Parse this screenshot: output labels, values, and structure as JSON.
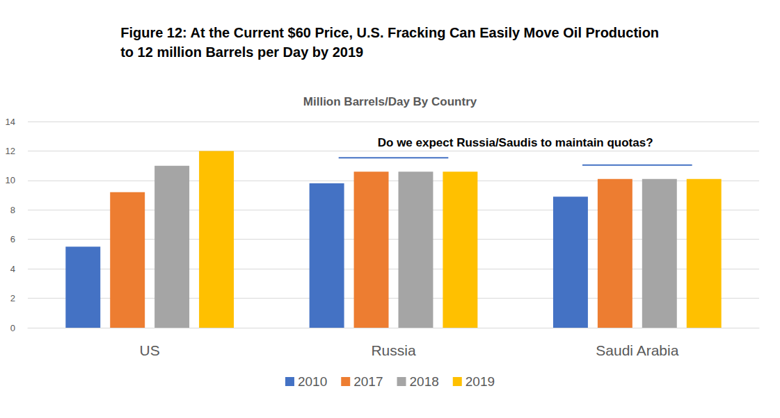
{
  "chart_data": {
    "type": "bar",
    "title": "Figure 12: At the Current $60 Price, U.S. Fracking Can Easily Move Oil Production\nto 12 million Barrels per Day by 2019",
    "subtitle": "Million Barrels/Day By Country",
    "annotation": "Do we expect Russia/Saudis to maintain quotas?",
    "categories": [
      "US",
      "Russia",
      "Saudi Arabia"
    ],
    "series": [
      {
        "name": "2010",
        "color": "#4472c4",
        "values": [
          5.5,
          9.8,
          8.9
        ]
      },
      {
        "name": "2017",
        "color": "#ed7d31",
        "values": [
          9.2,
          10.6,
          10.1
        ]
      },
      {
        "name": "2018",
        "color": "#a5a5a5",
        "values": [
          11.0,
          10.6,
          10.1
        ]
      },
      {
        "name": "2019",
        "color": "#ffc000",
        "values": [
          12.0,
          10.6,
          10.1
        ]
      }
    ],
    "ylim": [
      0,
      14
    ],
    "yticks": [
      0,
      2,
      4,
      6,
      8,
      10,
      12,
      14
    ],
    "grid": true,
    "legend": "bottom"
  }
}
